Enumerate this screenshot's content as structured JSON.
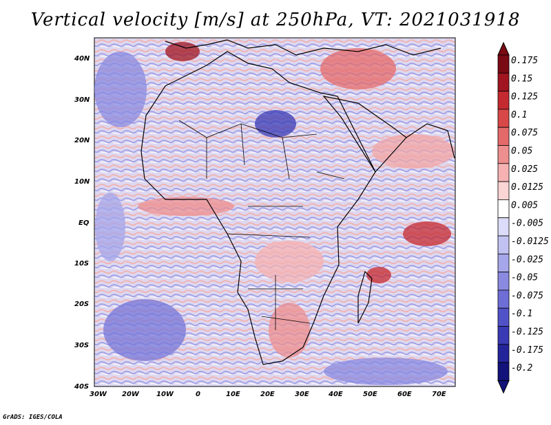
{
  "title": "Vertical velocity [m/s] at 250hPa, VT: 2021031918",
  "footer": "GrADS: IGES/COLA",
  "map": {
    "region": "Africa",
    "lon_ticks": [
      "30W",
      "20W",
      "10W",
      "0",
      "10E",
      "20E",
      "30E",
      "40E",
      "50E",
      "60E",
      "70E"
    ],
    "lat_ticks": [
      "40N",
      "30N",
      "20N",
      "10N",
      "EQ",
      "10S",
      "20S",
      "30S",
      "40S"
    ],
    "lon_range": [
      -30,
      75
    ],
    "lat_range": [
      -40,
      45
    ]
  },
  "colorbar": {
    "levels": [
      "0.175",
      "0.15",
      "0.125",
      "0.1",
      "0.075",
      "0.05",
      "0.025",
      "0.0125",
      "0.005",
      "-0.005",
      "-0.0125",
      "-0.025",
      "-0.05",
      "-0.075",
      "-0.1",
      "-0.125",
      "-0.175",
      "-0.2"
    ],
    "colors": [
      "#7a0a14",
      "#a01520",
      "#c42a30",
      "#d84848",
      "#e46a6a",
      "#ee8f8f",
      "#f6b2b2",
      "#fbd4d4",
      "#ffffff",
      "#dcdcfa",
      "#c2c2f2",
      "#a6a6ea",
      "#8a8ae0",
      "#6e6ed6",
      "#5252c8",
      "#3a3ab4",
      "#24249a",
      "#12127a"
    ]
  }
}
